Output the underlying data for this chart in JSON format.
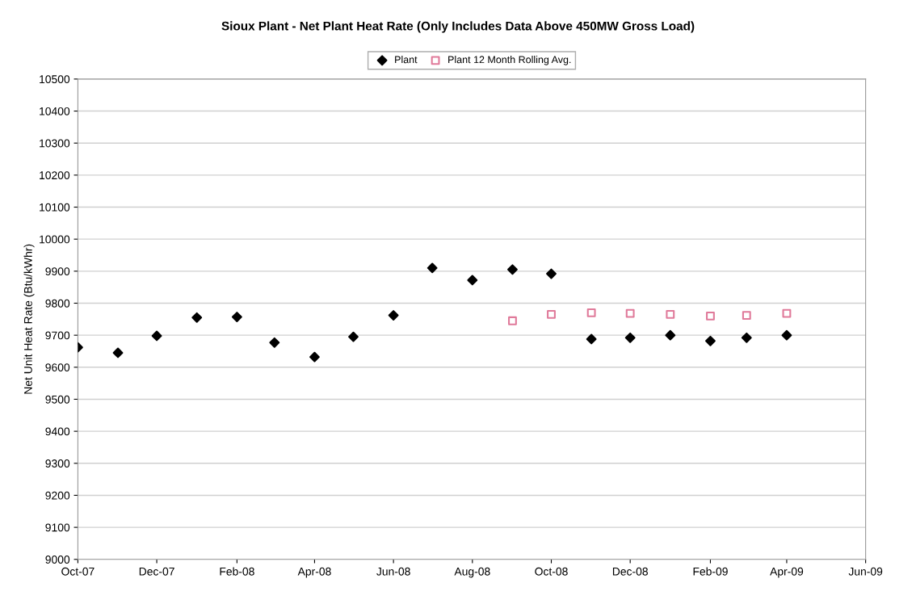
{
  "chart_data": {
    "type": "scatter",
    "title": "Sioux Plant - Net Plant Heat Rate (Only Includes Data Above 450MW Gross Load)",
    "ylabel": "Net Unit Heat Rate (Btu/kWhr)",
    "x": [
      "2007-10",
      "2007-11",
      "2007-12",
      "2008-01",
      "2008-02",
      "2008-03",
      "2008-04",
      "2008-05",
      "2008-06",
      "2008-07",
      "2008-08",
      "2008-09",
      "2008-10",
      "2008-11",
      "2008-12",
      "2009-01",
      "2009-02",
      "2009-03",
      "2009-04"
    ],
    "series": [
      {
        "name": "Plant",
        "color": "#000000",
        "marker": "diamond",
        "values": [
          9662,
          9645,
          9698,
          9755,
          9757,
          9677,
          9632,
          9695,
          9762,
          9910,
          9872,
          9905,
          9892,
          9688,
          9692,
          9700,
          9682,
          9692,
          9700
        ]
      },
      {
        "name": "Plant 12 Month Rolling Avg.",
        "color": "#e07a9a",
        "marker": "square",
        "x": [
          "2008-09",
          "2008-10",
          "2008-11",
          "2008-12",
          "2009-01",
          "2009-02",
          "2009-03",
          "2009-04"
        ],
        "values": [
          9745,
          9765,
          9770,
          9768,
          9765,
          9760,
          9762,
          9768
        ]
      }
    ],
    "xlim": [
      "2007-10",
      "2009-06"
    ],
    "xticks": [
      {
        "value": "2007-10",
        "label": "Oct-07"
      },
      {
        "value": "2007-12",
        "label": "Dec-07"
      },
      {
        "value": "2008-02",
        "label": "Feb-08"
      },
      {
        "value": "2008-04",
        "label": "Apr-08"
      },
      {
        "value": "2008-06",
        "label": "Jun-08"
      },
      {
        "value": "2008-08",
        "label": "Aug-08"
      },
      {
        "value": "2008-10",
        "label": "Oct-08"
      },
      {
        "value": "2008-12",
        "label": "Dec-08"
      },
      {
        "value": "2009-02",
        "label": "Feb-09"
      },
      {
        "value": "2009-04",
        "label": "Apr-09"
      },
      {
        "value": "2009-06",
        "label": "Jun-09"
      }
    ],
    "ylim": [
      9000,
      10500
    ],
    "yticks": [
      9000,
      9100,
      9200,
      9300,
      9400,
      9500,
      9600,
      9700,
      9800,
      9900,
      10000,
      10100,
      10200,
      10300,
      10400,
      10500
    ],
    "grid": "y",
    "legend": "top"
  }
}
